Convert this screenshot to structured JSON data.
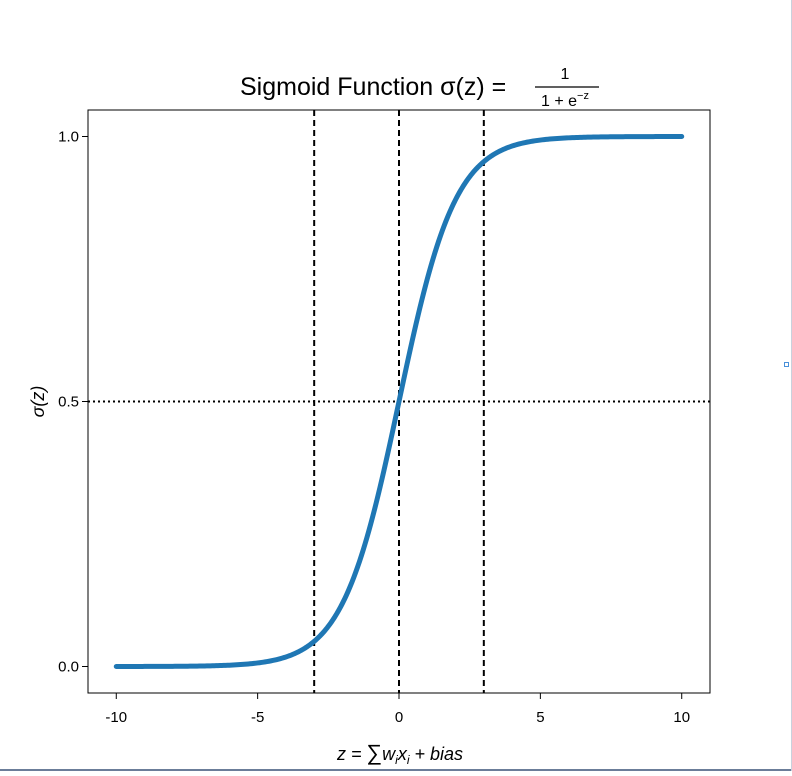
{
  "chart_data": {
    "type": "line",
    "title": {
      "text": "Sigmoid Function σ(z) =",
      "fraction_numerator": "1",
      "fraction_denominator_base": "1 + e",
      "fraction_denominator_exponent": "−z"
    },
    "xlabel": {
      "lhs": "z = ",
      "sum_symbol": "∑",
      "w": "w",
      "w_sub": "i",
      "x": "x",
      "x_sub": "i",
      "tail": " + bias"
    },
    "ylabel": "σ(z)",
    "xlim": [
      -11,
      11
    ],
    "ylim": [
      -0.05,
      1.05
    ],
    "x_ticks": [
      -10,
      -5,
      0,
      5,
      10
    ],
    "x_tick_labels": [
      "-10",
      "-5",
      "0",
      "5",
      "10"
    ],
    "y_ticks": [
      0.0,
      0.5,
      1.0
    ],
    "y_tick_labels": [
      "0.0",
      "0.5",
      "1.0"
    ],
    "series": [
      {
        "function": "sigmoid",
        "x_range": [
          -10,
          10
        ],
        "color": "#1f77b4"
      }
    ],
    "reference_lines": [
      {
        "orientation": "vertical",
        "value": -3,
        "style": "dashed",
        "color": "#000000"
      },
      {
        "orientation": "vertical",
        "value": 0,
        "style": "dashed",
        "color": "#000000"
      },
      {
        "orientation": "vertical",
        "value": 3,
        "style": "dashed",
        "color": "#000000"
      },
      {
        "orientation": "horizontal",
        "value": 0.5,
        "style": "dotted",
        "color": "#000000"
      }
    ],
    "grid": false,
    "legend": "none"
  }
}
